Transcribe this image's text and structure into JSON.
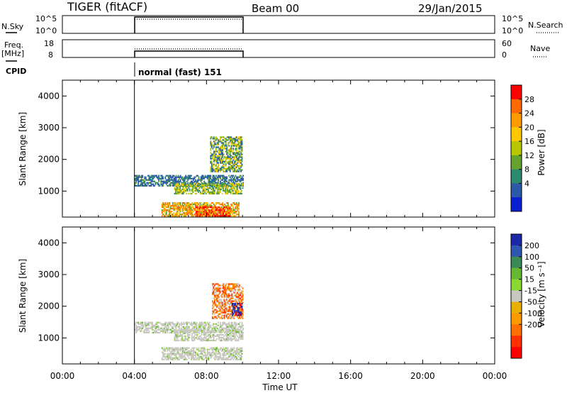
{
  "header": {
    "radar": "TIGER (fitACF)",
    "beam": "Beam 00",
    "date": "29/Jan/2015"
  },
  "nsky_panel": {
    "left_label": "N.Sky",
    "right_label": "N.Search",
    "y_ticks": [
      "10^5",
      "10^0"
    ],
    "right_ticks": [
      "10^5",
      "10^0"
    ]
  },
  "freq_panel": {
    "left_label": "Freq.",
    "left_unit": "[MHz]",
    "right_label": "Nave",
    "y_ticks": [
      "18",
      "8"
    ],
    "right_ticks": [
      "60",
      "0"
    ]
  },
  "cpid": {
    "label": "CPID",
    "mode_text": "normal (fast) 151"
  },
  "x_axis": {
    "label": "Time UT",
    "ticks": [
      "00:00",
      "04:00",
      "08:00",
      "12:00",
      "16:00",
      "20:00",
      "00:00"
    ]
  },
  "power_colorbar": {
    "label": "Power [dB]",
    "ticks": [
      "28",
      "24",
      "20",
      "16",
      "12",
      "8",
      "4"
    ],
    "colors": [
      "#ff0000",
      "#ff6a00",
      "#ff9a00",
      "#ffc800",
      "#b8c800",
      "#66a32e",
      "#2e8a6e",
      "#2d5aa8",
      "#0a1fd1"
    ]
  },
  "velocity_colorbar": {
    "label": "Velocity [m s⁻¹]",
    "ticks": [
      "200",
      "100",
      "50",
      "15",
      "-15",
      "-50",
      "-100",
      "-200"
    ],
    "colors": [
      "#1a28a8",
      "#2f56b0",
      "#3a8a55",
      "#66b832",
      "#8ad830",
      "#c8c8c0",
      "#e8b000",
      "#ff9900",
      "#ff7000",
      "#ff3000",
      "#ff0000"
    ]
  },
  "chart_data": [
    {
      "type": "heatmap",
      "title": "Power",
      "ylabel": "Slant Range [km]",
      "xlabel": "Time UT",
      "ylim": [
        180,
        4500
      ],
      "xlim_hours": [
        0,
        24
      ],
      "y_ticks": [
        1000,
        2000,
        3000,
        4000
      ],
      "data_window_hours": [
        4.0,
        10.0
      ],
      "regions": [
        {
          "t": [
            4.0,
            10.0
          ],
          "r": [
            1150,
            1500
          ],
          "level": "low"
        },
        {
          "t": [
            6.2,
            10.0
          ],
          "r": [
            900,
            1250
          ],
          "level": "mid"
        },
        {
          "t": [
            5.5,
            9.8
          ],
          "r": [
            200,
            650
          ],
          "level": "high"
        },
        {
          "t": [
            7.4,
            9.3
          ],
          "r": [
            200,
            500
          ],
          "level": "max"
        },
        {
          "t": [
            8.2,
            10.0
          ],
          "r": [
            1600,
            2700
          ],
          "level": "mixed"
        }
      ]
    },
    {
      "type": "heatmap",
      "title": "Velocity",
      "ylabel": "Slant Range [km]",
      "xlabel": "Time UT",
      "ylim": [
        180,
        4500
      ],
      "xlim_hours": [
        0,
        24
      ],
      "y_ticks": [
        1000,
        2000,
        3000,
        4000
      ],
      "data_window_hours": [
        4.0,
        10.0
      ],
      "regions": [
        {
          "t": [
            4.0,
            10.0
          ],
          "r": [
            1150,
            1500
          ],
          "level": "near-zero"
        },
        {
          "t": [
            6.2,
            10.0
          ],
          "r": [
            900,
            1250
          ],
          "level": "near-zero"
        },
        {
          "t": [
            5.5,
            10.0
          ],
          "r": [
            300,
            700
          ],
          "level": "near-zero"
        },
        {
          "t": [
            8.3,
            10.0
          ],
          "r": [
            1600,
            2700
          ],
          "level": "negative"
        },
        {
          "t": [
            9.4,
            10.0
          ],
          "r": [
            1700,
            2100
          ],
          "level": "positive"
        }
      ]
    }
  ]
}
